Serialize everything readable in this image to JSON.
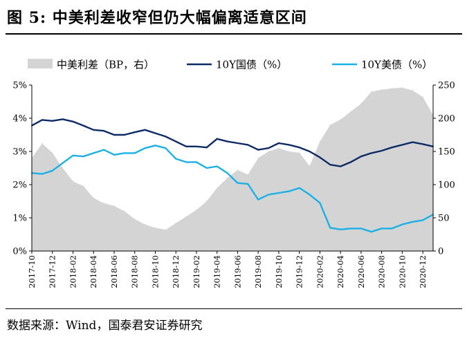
{
  "title": "图 5:  中美利差收窄但仍大幅偏离适意区间",
  "source": "数据来源：Wind，国泰君安证券研究",
  "colors": {
    "spread": "#d4d4d4",
    "cn10y": "#0d2a66",
    "us10y": "#1ab0e6",
    "axis": "#000000"
  },
  "chart_data": {
    "type": "line",
    "legend_position": "top",
    "grid": false,
    "x_ticks": [
      "2017-10",
      "2017-12",
      "2018-02",
      "2018-04",
      "2018-06",
      "2018-08",
      "2018-10",
      "2018-12",
      "2019-02",
      "2019-04",
      "2019-06",
      "2019-08",
      "2019-10",
      "2019-12",
      "2020-02",
      "2020-04",
      "2020-06",
      "2020-08",
      "2020-10",
      "2020-12"
    ],
    "x_range": [
      "2017-10",
      "2021-01"
    ],
    "y_left": {
      "ticks": [
        "0%",
        "1%",
        "2%",
        "3%",
        "4%",
        "5%"
      ],
      "range": [
        0,
        5
      ],
      "unit": "%"
    },
    "y_right": {
      "ticks": [
        "0",
        "50",
        "100",
        "150",
        "200",
        "250"
      ],
      "range": [
        0,
        250
      ],
      "unit": "BP"
    },
    "series": [
      {
        "name": "中美利差（BP，右）",
        "kind": "area",
        "axis": "right",
        "points": [
          [
            "2017-10",
            140
          ],
          [
            "2017-11",
            162
          ],
          [
            "2017-12",
            148
          ],
          [
            "2018-01",
            125
          ],
          [
            "2018-02",
            105
          ],
          [
            "2018-03",
            98
          ],
          [
            "2018-04",
            80
          ],
          [
            "2018-05",
            72
          ],
          [
            "2018-06",
            68
          ],
          [
            "2018-07",
            60
          ],
          [
            "2018-08",
            48
          ],
          [
            "2018-09",
            40
          ],
          [
            "2018-10",
            35
          ],
          [
            "2018-11",
            32
          ],
          [
            "2018-12",
            42
          ],
          [
            "2019-01",
            52
          ],
          [
            "2019-02",
            62
          ],
          [
            "2019-03",
            75
          ],
          [
            "2019-04",
            95
          ],
          [
            "2019-05",
            110
          ],
          [
            "2019-06",
            122
          ],
          [
            "2019-07",
            115
          ],
          [
            "2019-08",
            140
          ],
          [
            "2019-09",
            150
          ],
          [
            "2019-10",
            155
          ],
          [
            "2019-11",
            150
          ],
          [
            "2019-12",
            148
          ],
          [
            "2020-01",
            128
          ],
          [
            "2020-02",
            165
          ],
          [
            "2020-03",
            190
          ],
          [
            "2020-04",
            198
          ],
          [
            "2020-05",
            210
          ],
          [
            "2020-06",
            222
          ],
          [
            "2020-07",
            240
          ],
          [
            "2020-08",
            243
          ],
          [
            "2020-09",
            245
          ],
          [
            "2020-10",
            246
          ],
          [
            "2020-11",
            242
          ],
          [
            "2020-12",
            232
          ],
          [
            "2021-01",
            205
          ]
        ]
      },
      {
        "name": "10Y国债（%）",
        "kind": "line",
        "axis": "left",
        "points": [
          [
            "2017-10",
            3.78
          ],
          [
            "2017-11",
            3.95
          ],
          [
            "2017-12",
            3.92
          ],
          [
            "2018-01",
            3.97
          ],
          [
            "2018-02",
            3.9
          ],
          [
            "2018-03",
            3.78
          ],
          [
            "2018-04",
            3.65
          ],
          [
            "2018-05",
            3.62
          ],
          [
            "2018-06",
            3.5
          ],
          [
            "2018-07",
            3.5
          ],
          [
            "2018-08",
            3.58
          ],
          [
            "2018-09",
            3.65
          ],
          [
            "2018-10",
            3.55
          ],
          [
            "2018-11",
            3.45
          ],
          [
            "2018-12",
            3.3
          ],
          [
            "2019-01",
            3.15
          ],
          [
            "2019-02",
            3.15
          ],
          [
            "2019-03",
            3.12
          ],
          [
            "2019-04",
            3.38
          ],
          [
            "2019-05",
            3.3
          ],
          [
            "2019-06",
            3.25
          ],
          [
            "2019-07",
            3.2
          ],
          [
            "2019-08",
            3.05
          ],
          [
            "2019-09",
            3.1
          ],
          [
            "2019-10",
            3.25
          ],
          [
            "2019-11",
            3.2
          ],
          [
            "2019-12",
            3.12
          ],
          [
            "2020-01",
            3.0
          ],
          [
            "2020-02",
            2.82
          ],
          [
            "2020-03",
            2.6
          ],
          [
            "2020-04",
            2.55
          ],
          [
            "2020-05",
            2.68
          ],
          [
            "2020-06",
            2.85
          ],
          [
            "2020-07",
            2.95
          ],
          [
            "2020-08",
            3.02
          ],
          [
            "2020-09",
            3.12
          ],
          [
            "2020-10",
            3.2
          ],
          [
            "2020-11",
            3.28
          ],
          [
            "2020-12",
            3.22
          ],
          [
            "2021-01",
            3.15
          ]
        ]
      },
      {
        "name": "10Y美债（%）",
        "kind": "line",
        "axis": "left",
        "points": [
          [
            "2017-10",
            2.35
          ],
          [
            "2017-11",
            2.32
          ],
          [
            "2017-12",
            2.42
          ],
          [
            "2018-01",
            2.65
          ],
          [
            "2018-02",
            2.88
          ],
          [
            "2018-03",
            2.85
          ],
          [
            "2018-04",
            2.95
          ],
          [
            "2018-05",
            3.05
          ],
          [
            "2018-06",
            2.9
          ],
          [
            "2018-07",
            2.95
          ],
          [
            "2018-08",
            2.95
          ],
          [
            "2018-09",
            3.1
          ],
          [
            "2018-10",
            3.18
          ],
          [
            "2018-11",
            3.1
          ],
          [
            "2018-12",
            2.78
          ],
          [
            "2019-01",
            2.68
          ],
          [
            "2019-02",
            2.68
          ],
          [
            "2019-03",
            2.5
          ],
          [
            "2019-04",
            2.55
          ],
          [
            "2019-05",
            2.35
          ],
          [
            "2019-06",
            2.05
          ],
          [
            "2019-07",
            2.02
          ],
          [
            "2019-08",
            1.55
          ],
          [
            "2019-09",
            1.7
          ],
          [
            "2019-10",
            1.75
          ],
          [
            "2019-11",
            1.8
          ],
          [
            "2019-12",
            1.9
          ],
          [
            "2020-01",
            1.7
          ],
          [
            "2020-02",
            1.45
          ],
          [
            "2020-03",
            0.7
          ],
          [
            "2020-04",
            0.65
          ],
          [
            "2020-05",
            0.68
          ],
          [
            "2020-06",
            0.68
          ],
          [
            "2020-07",
            0.58
          ],
          [
            "2020-08",
            0.68
          ],
          [
            "2020-09",
            0.68
          ],
          [
            "2020-10",
            0.8
          ],
          [
            "2020-11",
            0.88
          ],
          [
            "2020-12",
            0.93
          ],
          [
            "2021-01",
            1.1
          ]
        ]
      }
    ]
  }
}
